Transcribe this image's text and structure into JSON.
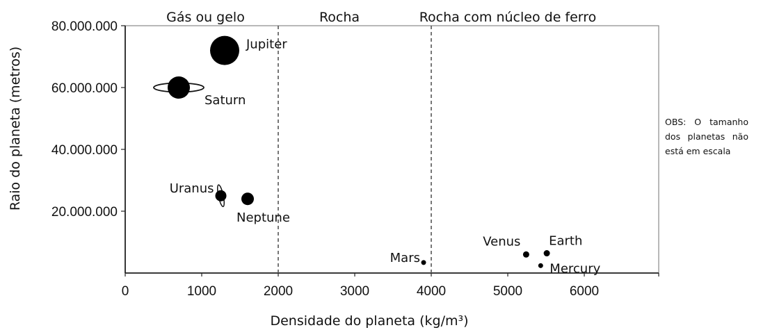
{
  "chart_data": {
    "type": "scatter",
    "xlabel": "Densidade do planeta (kg/m³)",
    "ylabel": "Raio do planeta (metros)",
    "xlim": [
      0,
      7000
    ],
    "ylim": [
      0,
      80000000
    ],
    "x_ticks": [
      {
        "value": 0,
        "label": "0"
      },
      {
        "value": 1000,
        "label": "1000"
      },
      {
        "value": 2000,
        "label": "2000"
      },
      {
        "value": 3000,
        "label": "3000"
      },
      {
        "value": 4000,
        "label": "4000"
      },
      {
        "value": 5000,
        "label": "5000"
      },
      {
        "value": 6000,
        "label": "6000"
      }
    ],
    "y_ticks": [
      {
        "value": 20000000,
        "label": "20.000.000"
      },
      {
        "value": 40000000,
        "label": "40.000.000"
      },
      {
        "value": 60000000,
        "label": "60.000.000"
      },
      {
        "value": 80000000,
        "label": "80.000.000"
      }
    ],
    "dividers": [
      2000,
      4000
    ],
    "regions": [
      {
        "label": "Gás ou gelo",
        "x_center": 1050
      },
      {
        "label": "Rocha",
        "x_center": 2800
      },
      {
        "label": "Rocha com núcleo de ferro",
        "x_center": 5000
      }
    ],
    "points": [
      {
        "name": "Jupiter",
        "x": 1300,
        "y": 72000000,
        "rings": false
      },
      {
        "name": "Saturn",
        "x": 700,
        "y": 60000000,
        "rings": true
      },
      {
        "name": "Uranus",
        "x": 1250,
        "y": 25000000,
        "rings": true
      },
      {
        "name": "Neptune",
        "x": 1600,
        "y": 24000000,
        "rings": false
      },
      {
        "name": "Mars",
        "x": 3900,
        "y": 3400000,
        "rings": false
      },
      {
        "name": "Venus",
        "x": 5240,
        "y": 6000000,
        "rings": false
      },
      {
        "name": "Earth",
        "x": 5510,
        "y": 6400000,
        "rings": false
      },
      {
        "name": "Mercury",
        "x": 5430,
        "y": 2400000,
        "rings": false
      }
    ],
    "grid": false
  },
  "note": "OBS: O tamanho dos planetas não está em escala"
}
